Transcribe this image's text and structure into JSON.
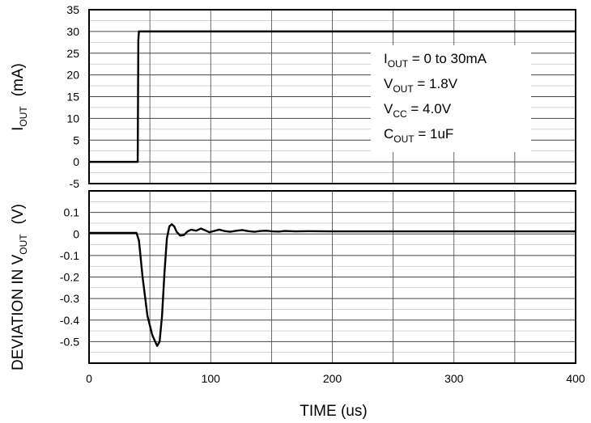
{
  "chart_data": [
    {
      "type": "line",
      "panel": "top",
      "ylabel": {
        "main": "I",
        "sub": "OUT",
        "unit": "(mA)"
      },
      "xlim": [
        0,
        400
      ],
      "ylim": [
        -5,
        35
      ],
      "yticks": [
        "35",
        "30",
        "25",
        "20",
        "15",
        "10",
        "5",
        "0",
        "-5"
      ],
      "grid": true,
      "series": [
        {
          "x": [
            0,
            40,
            40.5,
            41,
            400
          ],
          "y": [
            0,
            0,
            28,
            30,
            30
          ]
        }
      ],
      "annotations": [
        {
          "main": "I",
          "sub": "OUT",
          "rest": " = 0 to 30mA"
        },
        {
          "main": "V",
          "sub": "OUT",
          "rest": " = 1.8V"
        },
        {
          "main": "V",
          "sub": "CC",
          "rest": " = 4.0V"
        },
        {
          "main": "C",
          "sub": "OUT",
          "rest": " = 1uF"
        }
      ]
    },
    {
      "type": "line",
      "panel": "bottom",
      "ylabel": {
        "main": "DEVIATION IN V",
        "sub": "OUT",
        "unit": "(V)"
      },
      "xlabel": "TIME (us)",
      "xlim": [
        0,
        400
      ],
      "ylim": [
        -0.6,
        0.2
      ],
      "yticks": [
        "0.1",
        "0",
        "-0.1",
        "-0.2",
        "-0.3",
        "-0.4",
        "-0.5"
      ],
      "xticks": [
        "0",
        "100",
        "200",
        "300",
        "400"
      ],
      "grid": true,
      "series": [
        {
          "x": [
            0,
            39,
            41,
            44,
            48,
            52,
            56,
            58,
            60,
            62,
            64,
            66,
            68,
            70,
            72,
            75,
            78,
            81,
            84,
            88,
            92,
            95,
            99,
            103,
            107,
            111,
            116,
            121,
            126,
            131,
            136,
            141,
            146,
            151,
            156,
            161,
            170,
            180,
            200,
            230,
            260,
            300,
            400
          ],
          "y": [
            0.005,
            0.005,
            -0.03,
            -0.2,
            -0.38,
            -0.47,
            -0.52,
            -0.5,
            -0.38,
            -0.18,
            -0.02,
            0.035,
            0.045,
            0.035,
            0.01,
            -0.008,
            -0.005,
            0.012,
            0.02,
            0.015,
            0.025,
            0.018,
            0.008,
            0.014,
            0.02,
            0.014,
            0.01,
            0.015,
            0.018,
            0.013,
            0.01,
            0.014,
            0.015,
            0.012,
            0.011,
            0.014,
            0.012,
            0.013,
            0.012,
            0.012,
            0.012,
            0.012,
            0.012
          ]
        }
      ]
    }
  ]
}
